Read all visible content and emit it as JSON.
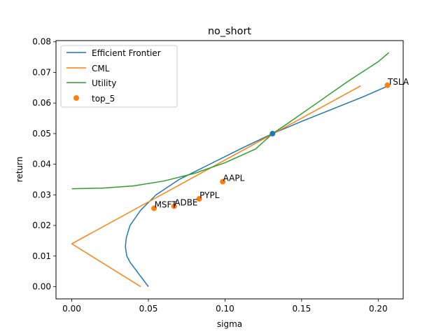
{
  "chart_data": {
    "type": "line",
    "title": "no_short",
    "xlabel": "sigma",
    "ylabel": "return",
    "xlim": [
      -0.0103,
      0.2163
    ],
    "ylim": [
      -0.004,
      0.0804
    ],
    "x_ticks": [
      0.0,
      0.05,
      0.1,
      0.15,
      0.2
    ],
    "x_tick_labels": [
      "0.00",
      "0.05",
      "0.10",
      "0.15",
      "0.20"
    ],
    "y_ticks": [
      0.0,
      0.01,
      0.02,
      0.03,
      0.04,
      0.05,
      0.06,
      0.07,
      0.08
    ],
    "y_tick_labels": [
      "0.00",
      "0.01",
      "0.02",
      "0.03",
      "0.04",
      "0.05",
      "0.06",
      "0.07",
      "0.08"
    ],
    "grid": false,
    "legend_position": "top-left",
    "legend": [
      {
        "label": "Efficient Frontier",
        "color": "#1f77b4",
        "kind": "line"
      },
      {
        "label": "CML",
        "color": "#ff7f0e",
        "kind": "line"
      },
      {
        "label": "Utility",
        "color": "#2ca02c",
        "kind": "line"
      },
      {
        "label": "top_5",
        "color": "#ff7f0e",
        "kind": "marker"
      }
    ],
    "series": [
      {
        "name": "Efficient Frontier",
        "color": "#1f77b4",
        "points": [
          [
            0.05,
            0.0
          ],
          [
            0.044,
            0.004
          ],
          [
            0.038,
            0.008
          ],
          [
            0.0359,
            0.01
          ],
          [
            0.035,
            0.013
          ],
          [
            0.0356,
            0.016
          ],
          [
            0.038,
            0.02
          ],
          [
            0.045,
            0.025
          ],
          [
            0.055,
            0.03
          ],
          [
            0.07,
            0.035
          ],
          [
            0.09,
            0.04
          ],
          [
            0.11,
            0.045
          ],
          [
            0.131,
            0.05
          ],
          [
            0.15,
            0.054
          ],
          [
            0.17,
            0.058
          ],
          [
            0.19,
            0.062
          ],
          [
            0.206,
            0.0655
          ]
        ]
      },
      {
        "name": "CML",
        "color": "#ff7f0e",
        "points": [
          [
            0.045,
            0.0
          ],
          [
            0.0,
            0.014
          ],
          [
            0.1885,
            0.0656
          ]
        ]
      },
      {
        "name": "Utility",
        "color": "#2ca02c",
        "points": [
          [
            0.0,
            0.032
          ],
          [
            0.02,
            0.0322
          ],
          [
            0.04,
            0.0329
          ],
          [
            0.06,
            0.0345
          ],
          [
            0.08,
            0.037
          ],
          [
            0.1,
            0.0405
          ],
          [
            0.12,
            0.045
          ],
          [
            0.131,
            0.05
          ],
          [
            0.14,
            0.053
          ],
          [
            0.16,
            0.06
          ],
          [
            0.18,
            0.067
          ],
          [
            0.2,
            0.0735
          ],
          [
            0.207,
            0.0765
          ]
        ]
      }
    ],
    "tangent_point": {
      "x": 0.131,
      "y": 0.05,
      "color": "#1f77b4"
    },
    "top_5": [
      {
        "label": "TSLA",
        "x": 0.206,
        "y": 0.0658
      },
      {
        "label": "AAPL",
        "x": 0.0985,
        "y": 0.0343
      },
      {
        "label": "PYPL",
        "x": 0.0832,
        "y": 0.0287
      },
      {
        "label": "ADBE",
        "x": 0.0668,
        "y": 0.0263
      },
      {
        "label": "MSFT",
        "x": 0.0537,
        "y": 0.0256
      }
    ]
  }
}
